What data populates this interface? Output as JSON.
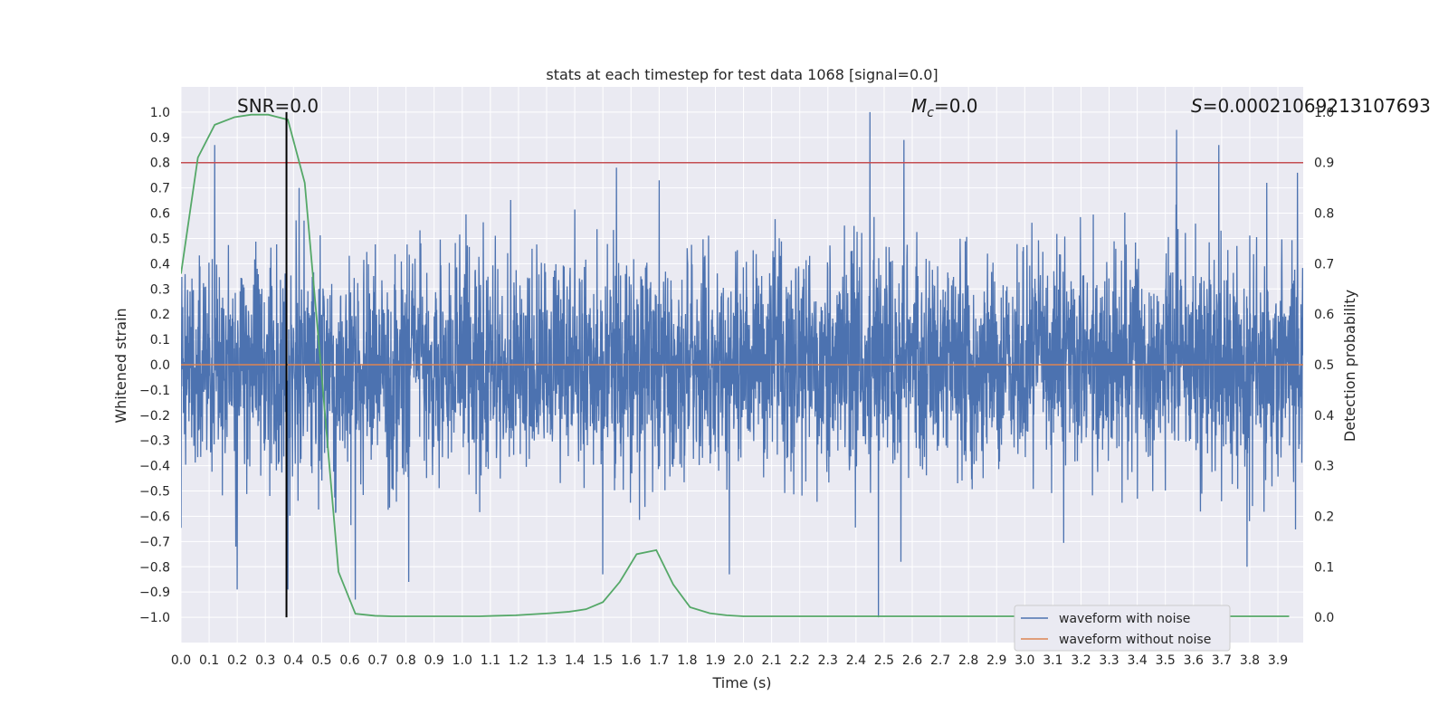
{
  "chart_data": {
    "type": "line",
    "title": "stats at each timestep for test data 1068 [signal=0.0]",
    "xlabel": "Time (s)",
    "ylabel": "Whitened strain",
    "ylabel_right": "Detection probability",
    "xlim": [
      0.0,
      3.99
    ],
    "ylim": [
      -1.1,
      1.1
    ],
    "ylim_right": [
      -0.05,
      1.05
    ],
    "xticks": [
      0.0,
      0.1,
      0.2,
      0.3,
      0.4,
      0.5,
      0.6,
      0.7,
      0.8,
      0.9,
      1.0,
      1.1,
      1.2,
      1.3,
      1.4,
      1.5,
      1.6,
      1.7,
      1.8,
      1.9,
      2.0,
      2.1,
      2.2,
      2.3,
      2.4,
      2.5,
      2.6,
      2.7,
      2.8,
      2.9,
      3.0,
      3.1,
      3.2,
      3.3,
      3.4,
      3.5,
      3.6,
      3.7,
      3.8,
      3.9
    ],
    "xtick_labels": [
      "0.0",
      "0.1",
      "0.2",
      "0.3",
      "0.4",
      "0.5",
      "0.6",
      "0.7",
      "0.8",
      "0.9",
      "1.0",
      "1.1",
      "1.2",
      "1.3",
      "1.4",
      "1.5",
      "1.6",
      "1.7",
      "1.8",
      "1.9",
      "2.0",
      "2.1",
      "2.2",
      "2.3",
      "2.4",
      "2.5",
      "2.6",
      "2.7",
      "2.8",
      "2.9",
      "3.0",
      "3.1",
      "3.2",
      "3.3",
      "3.4",
      "3.5",
      "3.6",
      "3.7",
      "3.8",
      "3.9"
    ],
    "yticks": [
      -1.0,
      -0.9,
      -0.8,
      -0.7,
      -0.6,
      -0.5,
      -0.4,
      -0.3,
      -0.2,
      -0.1,
      0.0,
      0.1,
      0.2,
      0.3,
      0.4,
      0.5,
      0.6,
      0.7,
      0.8,
      0.9,
      1.0
    ],
    "ytick_labels": [
      "−1.0",
      "−0.9",
      "−0.8",
      "−0.7",
      "−0.6",
      "−0.5",
      "−0.4",
      "−0.3",
      "−0.2",
      "−0.1",
      "0.0",
      "0.1",
      "0.2",
      "0.3",
      "0.4",
      "0.5",
      "0.6",
      "0.7",
      "0.8",
      "0.9",
      "1.0"
    ],
    "yticks_right": [
      0.0,
      0.1,
      0.2,
      0.3,
      0.4,
      0.5,
      0.6,
      0.7,
      0.8,
      0.9,
      1.0
    ],
    "ytick_labels_right": [
      "0.0",
      "0.1",
      "0.2",
      "0.3",
      "0.4",
      "0.5",
      "0.6",
      "0.7",
      "0.8",
      "0.9",
      "1.0"
    ],
    "grid": true,
    "legend_placement": "lower-right",
    "annotations": {
      "snr": "SNR=0.0",
      "mc_symbol": "M",
      "mc_sub": "c",
      "mc_value": "=0.0",
      "s_symbol": "S",
      "s_value": "=0.00021069213107693"
    },
    "threshold": {
      "axis": "right",
      "value": 0.9,
      "color": "#c44e52"
    },
    "vertical_marker": {
      "x": 0.375,
      "y_range_right": [
        0.0,
        1.0
      ],
      "color": "#000000"
    },
    "series": [
      {
        "name": "waveform with noise",
        "axis": "left",
        "color": "#4c72b0",
        "kind": "noise",
        "samples": 4096,
        "amplitude_std": 0.21,
        "peaks": [
          [
            0.12,
            0.87
          ],
          [
            0.38,
            -0.89
          ],
          [
            0.42,
            0.7
          ],
          [
            2.45,
            1.0
          ],
          [
            2.48,
            -1.0
          ],
          [
            2.57,
            0.89
          ],
          [
            3.54,
            0.93
          ],
          [
            3.69,
            0.87
          ],
          [
            0.2,
            -0.89
          ],
          [
            0.62,
            -0.93
          ],
          [
            0.81,
            -0.86
          ],
          [
            1.5,
            -0.83
          ],
          [
            1.95,
            -0.83
          ],
          [
            2.56,
            -0.78
          ],
          [
            3.79,
            -0.8
          ],
          [
            1.7,
            0.73
          ],
          [
            3.86,
            0.72
          ],
          [
            3.97,
            0.76
          ]
        ]
      },
      {
        "name": "waveform without noise",
        "axis": "left",
        "color": "#dd8452",
        "x": [
          0.0,
          3.99
        ],
        "y": [
          0.0,
          0.0
        ]
      },
      {
        "name": "detection probability",
        "axis": "right",
        "color": "#55a868",
        "x": [
          0.0,
          0.06,
          0.12,
          0.19,
          0.25,
          0.31,
          0.38,
          0.44,
          0.5,
          0.56,
          0.62,
          0.69,
          0.75,
          0.81,
          0.88,
          0.94,
          1.0,
          1.06,
          1.12,
          1.19,
          1.25,
          1.31,
          1.38,
          1.44,
          1.5,
          1.56,
          1.62,
          1.69,
          1.75,
          1.81,
          1.88,
          1.94,
          2.0,
          2.06,
          2.12,
          2.19,
          2.25,
          2.31,
          2.38,
          2.44,
          2.5,
          2.56,
          2.62,
          2.69,
          2.75,
          2.81,
          2.88,
          2.94,
          3.0,
          3.06,
          3.12,
          3.19,
          3.25,
          3.31,
          3.38,
          3.44,
          3.5,
          3.56,
          3.62,
          3.69,
          3.75,
          3.81,
          3.88,
          3.94
        ],
        "y": [
          0.68,
          0.91,
          0.975,
          0.99,
          0.995,
          0.995,
          0.985,
          0.86,
          0.48,
          0.09,
          0.007,
          0.003,
          0.002,
          0.002,
          0.002,
          0.002,
          0.002,
          0.002,
          0.003,
          0.004,
          0.006,
          0.008,
          0.011,
          0.016,
          0.03,
          0.07,
          0.125,
          0.133,
          0.065,
          0.02,
          0.008,
          0.004,
          0.002,
          0.002,
          0.002,
          0.002,
          0.002,
          0.002,
          0.002,
          0.002,
          0.002,
          0.002,
          0.002,
          0.002,
          0.002,
          0.002,
          0.002,
          0.002,
          0.002,
          0.002,
          0.002,
          0.002,
          0.002,
          0.002,
          0.002,
          0.002,
          0.002,
          0.002,
          0.002,
          0.002,
          0.002,
          0.002,
          0.002,
          0.002
        ]
      }
    ]
  }
}
